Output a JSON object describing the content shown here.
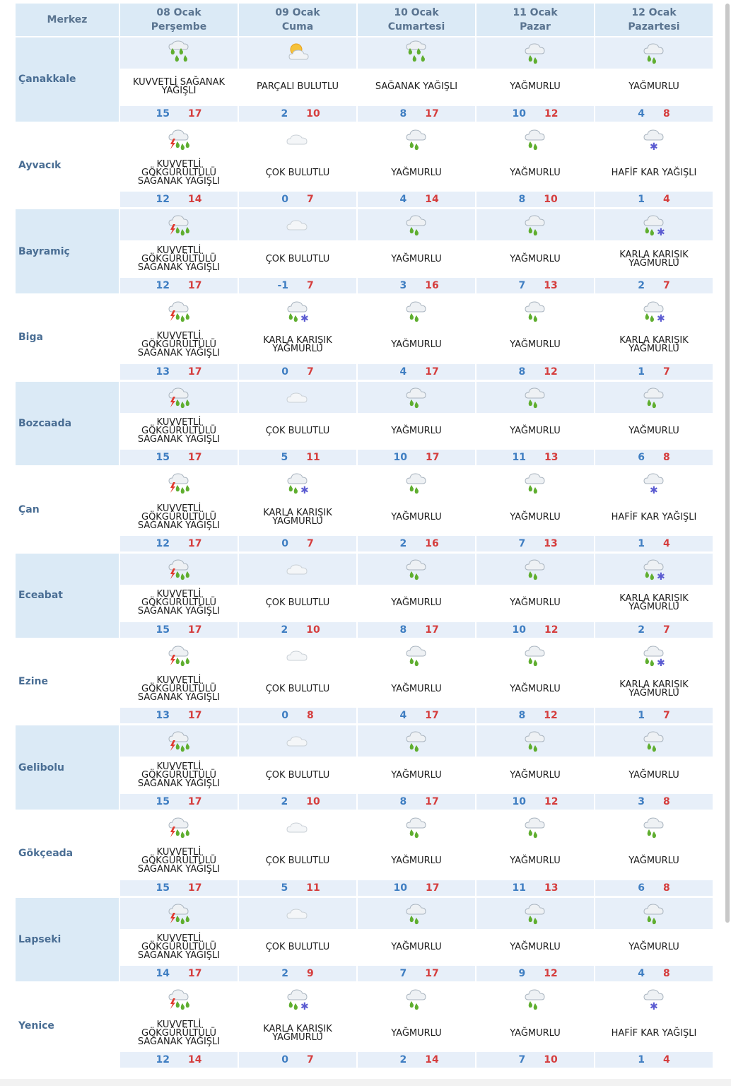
{
  "header": {
    "merkez": "Merkez",
    "days": [
      {
        "date": "08 Ocak",
        "day": "Perşembe"
      },
      {
        "date": "09 Ocak",
        "day": "Cuma"
      },
      {
        "date": "10 Ocak",
        "day": "Cumartesi"
      },
      {
        "date": "11 Ocak",
        "day": "Pazar"
      },
      {
        "date": "12 Ocak",
        "day": "Pazartesi"
      }
    ]
  },
  "icon_names": {
    "storm": "thunder-rain-cloud-icon",
    "partly": "sun-cloud-icon",
    "cloudy": "cloud-icon",
    "rain": "rain-cloud-icon",
    "sleet": "sleet-cloud-icon",
    "snow": "snow-cloud-icon",
    "heavyrain": "heavy-rain-icon"
  },
  "colors": {
    "header_bg": "#dbeaf6",
    "band_bg": "#e7eff9",
    "min_temp": "#3f7ec2",
    "max_temp": "#d53d3d",
    "city_text": "#4a6e94"
  },
  "rows": [
    {
      "city": "Çanakkale",
      "shade": true,
      "days": [
        {
          "icon": "heavyrain",
          "desc": "KUVVETLİ SAĞANAK YAĞIŞLI",
          "min": "15",
          "max": "17"
        },
        {
          "icon": "partly",
          "desc": "PARÇALI BULUTLU",
          "min": "2",
          "max": "10"
        },
        {
          "icon": "heavyrain",
          "desc": "SAĞANAK YAĞIŞLI",
          "min": "8",
          "max": "17"
        },
        {
          "icon": "rain",
          "desc": "YAĞMURLU",
          "min": "10",
          "max": "12"
        },
        {
          "icon": "rain",
          "desc": "YAĞMURLU",
          "min": "4",
          "max": "8"
        }
      ]
    },
    {
      "city": "Ayvacık",
      "shade": false,
      "days": [
        {
          "icon": "storm",
          "desc": "KUVVETLİ GÖKGÜRÜLTÜLÜ SAĞANAK YAĞIŞLI",
          "min": "12",
          "max": "14"
        },
        {
          "icon": "cloudy",
          "desc": "ÇOK BULUTLU",
          "min": "0",
          "max": "7"
        },
        {
          "icon": "rain",
          "desc": "YAĞMURLU",
          "min": "4",
          "max": "14"
        },
        {
          "icon": "rain",
          "desc": "YAĞMURLU",
          "min": "8",
          "max": "10"
        },
        {
          "icon": "snow",
          "desc": "HAFİF KAR YAĞIŞLI",
          "min": "1",
          "max": "4"
        }
      ]
    },
    {
      "city": "Bayramiç",
      "shade": true,
      "days": [
        {
          "icon": "storm",
          "desc": "KUVVETLİ GÖKGÜRÜLTÜLÜ SAĞANAK YAĞIŞLI",
          "min": "12",
          "max": "17"
        },
        {
          "icon": "cloudy",
          "desc": "ÇOK BULUTLU",
          "min": "-1",
          "max": "7"
        },
        {
          "icon": "rain",
          "desc": "YAĞMURLU",
          "min": "3",
          "max": "16"
        },
        {
          "icon": "rain",
          "desc": "YAĞMURLU",
          "min": "7",
          "max": "13"
        },
        {
          "icon": "sleet",
          "desc": "KARLA KARIŞIK YAĞMURLU",
          "min": "2",
          "max": "7"
        }
      ]
    },
    {
      "city": "Biga",
      "shade": false,
      "days": [
        {
          "icon": "storm",
          "desc": "KUVVETLİ GÖKGÜRÜLTÜLÜ SAĞANAK YAĞIŞLI",
          "min": "13",
          "max": "17"
        },
        {
          "icon": "sleet",
          "desc": "KARLA KARIŞIK YAĞMURLU",
          "min": "0",
          "max": "7"
        },
        {
          "icon": "rain",
          "desc": "YAĞMURLU",
          "min": "4",
          "max": "17"
        },
        {
          "icon": "rain",
          "desc": "YAĞMURLU",
          "min": "8",
          "max": "12"
        },
        {
          "icon": "sleet",
          "desc": "KARLA KARIŞIK YAĞMURLU",
          "min": "1",
          "max": "7"
        }
      ]
    },
    {
      "city": "Bozcaada",
      "shade": true,
      "days": [
        {
          "icon": "storm",
          "desc": "KUVVETLİ GÖKGÜRÜLTÜLÜ SAĞANAK YAĞIŞLI",
          "min": "15",
          "max": "17"
        },
        {
          "icon": "cloudy",
          "desc": "ÇOK BULUTLU",
          "min": "5",
          "max": "11"
        },
        {
          "icon": "rain",
          "desc": "YAĞMURLU",
          "min": "10",
          "max": "17"
        },
        {
          "icon": "rain",
          "desc": "YAĞMURLU",
          "min": "11",
          "max": "13"
        },
        {
          "icon": "rain",
          "desc": "YAĞMURLU",
          "min": "6",
          "max": "8"
        }
      ]
    },
    {
      "city": "Çan",
      "shade": false,
      "days": [
        {
          "icon": "storm",
          "desc": "KUVVETLİ GÖKGÜRÜLTÜLÜ SAĞANAK YAĞIŞLI",
          "min": "12",
          "max": "17"
        },
        {
          "icon": "sleet",
          "desc": "KARLA KARIŞIK YAĞMURLU",
          "min": "0",
          "max": "7"
        },
        {
          "icon": "rain",
          "desc": "YAĞMURLU",
          "min": "2",
          "max": "16"
        },
        {
          "icon": "rain",
          "desc": "YAĞMURLU",
          "min": "7",
          "max": "13"
        },
        {
          "icon": "snow",
          "desc": "HAFİF KAR YAĞIŞLI",
          "min": "1",
          "max": "4"
        }
      ]
    },
    {
      "city": "Eceabat",
      "shade": true,
      "days": [
        {
          "icon": "storm",
          "desc": "KUVVETLİ GÖKGÜRÜLTÜLÜ SAĞANAK YAĞIŞLI",
          "min": "15",
          "max": "17"
        },
        {
          "icon": "cloudy",
          "desc": "ÇOK BULUTLU",
          "min": "2",
          "max": "10"
        },
        {
          "icon": "rain",
          "desc": "YAĞMURLU",
          "min": "8",
          "max": "17"
        },
        {
          "icon": "rain",
          "desc": "YAĞMURLU",
          "min": "10",
          "max": "12"
        },
        {
          "icon": "sleet",
          "desc": "KARLA KARIŞIK YAĞMURLU",
          "min": "2",
          "max": "7"
        }
      ]
    },
    {
      "city": "Ezine",
      "shade": false,
      "days": [
        {
          "icon": "storm",
          "desc": "KUVVETLİ GÖKGÜRÜLTÜLÜ SAĞANAK YAĞIŞLI",
          "min": "13",
          "max": "17"
        },
        {
          "icon": "cloudy",
          "desc": "ÇOK BULUTLU",
          "min": "0",
          "max": "8"
        },
        {
          "icon": "rain",
          "desc": "YAĞMURLU",
          "min": "4",
          "max": "17"
        },
        {
          "icon": "rain",
          "desc": "YAĞMURLU",
          "min": "8",
          "max": "12"
        },
        {
          "icon": "sleet",
          "desc": "KARLA KARIŞIK YAĞMURLU",
          "min": "1",
          "max": "7"
        }
      ]
    },
    {
      "city": "Gelibolu",
      "shade": true,
      "days": [
        {
          "icon": "storm",
          "desc": "KUVVETLİ GÖKGÜRÜLTÜLÜ SAĞANAK YAĞIŞLI",
          "min": "15",
          "max": "17"
        },
        {
          "icon": "cloudy",
          "desc": "ÇOK BULUTLU",
          "min": "2",
          "max": "10"
        },
        {
          "icon": "rain",
          "desc": "YAĞMURLU",
          "min": "8",
          "max": "17"
        },
        {
          "icon": "rain",
          "desc": "YAĞMURLU",
          "min": "10",
          "max": "12"
        },
        {
          "icon": "rain",
          "desc": "YAĞMURLU",
          "min": "3",
          "max": "8"
        }
      ]
    },
    {
      "city": "Gökçeada",
      "shade": false,
      "days": [
        {
          "icon": "storm",
          "desc": "KUVVETLİ GÖKGÜRÜLTÜLÜ SAĞANAK YAĞIŞLI",
          "min": "15",
          "max": "17"
        },
        {
          "icon": "cloudy",
          "desc": "ÇOK BULUTLU",
          "min": "5",
          "max": "11"
        },
        {
          "icon": "rain",
          "desc": "YAĞMURLU",
          "min": "10",
          "max": "17"
        },
        {
          "icon": "rain",
          "desc": "YAĞMURLU",
          "min": "11",
          "max": "13"
        },
        {
          "icon": "rain",
          "desc": "YAĞMURLU",
          "min": "6",
          "max": "8"
        }
      ]
    },
    {
      "city": "Lapseki",
      "shade": true,
      "days": [
        {
          "icon": "storm",
          "desc": "KUVVETLİ GÖKGÜRÜLTÜLÜ SAĞANAK YAĞIŞLI",
          "min": "14",
          "max": "17"
        },
        {
          "icon": "cloudy",
          "desc": "ÇOK BULUTLU",
          "min": "2",
          "max": "9"
        },
        {
          "icon": "rain",
          "desc": "YAĞMURLU",
          "min": "7",
          "max": "17"
        },
        {
          "icon": "rain",
          "desc": "YAĞMURLU",
          "min": "9",
          "max": "12"
        },
        {
          "icon": "rain",
          "desc": "YAĞMURLU",
          "min": "4",
          "max": "8"
        }
      ]
    },
    {
      "city": "Yenice",
      "shade": false,
      "days": [
        {
          "icon": "storm",
          "desc": "KUVVETLİ GÖKGÜRÜLTÜLÜ SAĞANAK YAĞIŞLI",
          "min": "12",
          "max": "14"
        },
        {
          "icon": "sleet",
          "desc": "KARLA KARIŞIK YAĞMURLU",
          "min": "0",
          "max": "7"
        },
        {
          "icon": "rain",
          "desc": "YAĞMURLU",
          "min": "2",
          "max": "14"
        },
        {
          "icon": "rain",
          "desc": "YAĞMURLU",
          "min": "7",
          "max": "10"
        },
        {
          "icon": "snow",
          "desc": "HAFİF KAR YAĞIŞLI",
          "min": "1",
          "max": "4"
        }
      ]
    }
  ]
}
